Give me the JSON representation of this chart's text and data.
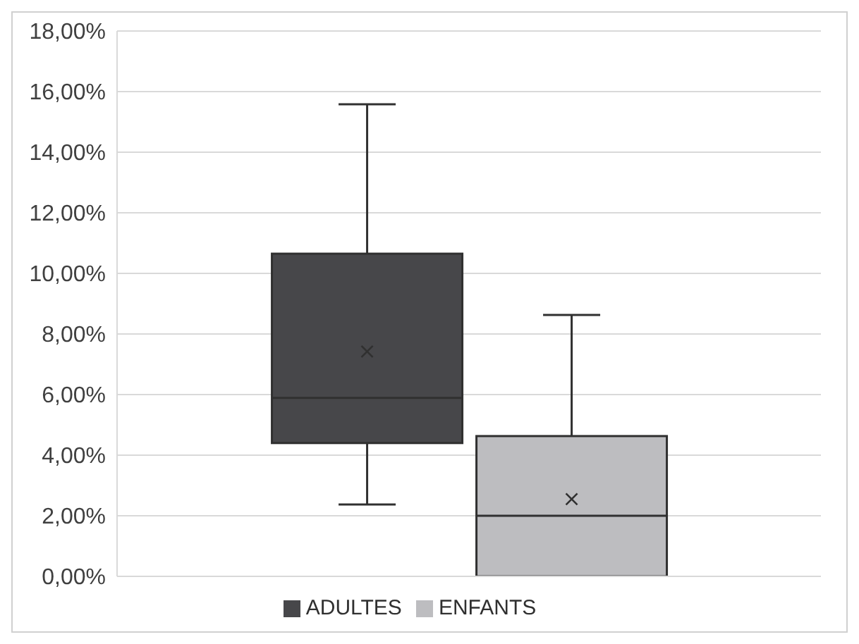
{
  "chart_data": {
    "type": "box",
    "categories": [
      null
    ],
    "series": [
      {
        "name": "ADULTES",
        "color": "#47474a",
        "boxes": [
          {
            "low": 2.37,
            "q1": 4.4,
            "median": 5.89,
            "q3": 10.65,
            "high": 15.58,
            "mean": 7.42
          }
        ]
      },
      {
        "name": "ENFANTS",
        "color": "#bdbdc0",
        "boxes": [
          {
            "low": 0,
            "q1": 0,
            "median": 2,
            "q3": 4.63,
            "high": 8.63,
            "mean": 2.55
          }
        ]
      }
    ],
    "ylim": [
      0,
      18
    ],
    "yticks": [
      {
        "value": 0,
        "label": "0,00%"
      },
      {
        "value": 2,
        "label": "2,00%"
      },
      {
        "value": 4,
        "label": "4,00%"
      },
      {
        "value": 6,
        "label": "6,00%"
      },
      {
        "value": 8,
        "label": "8,00%"
      },
      {
        "value": 10,
        "label": "10,00%"
      },
      {
        "value": 12,
        "label": "12,00%"
      },
      {
        "value": 14,
        "label": "14,00%"
      },
      {
        "value": 16,
        "label": "16,00%"
      },
      {
        "value": 18,
        "label": "18,00%"
      }
    ],
    "grid": "y",
    "legend": "bottom",
    "marker": "cross"
  }
}
